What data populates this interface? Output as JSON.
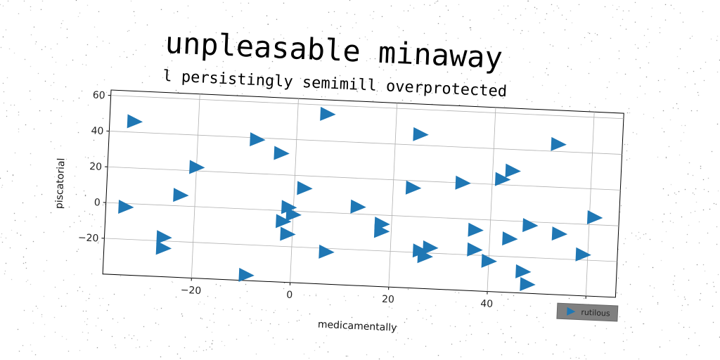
{
  "title": "unpleasable minaway",
  "subtitle": "l persistingly semimill overprotected",
  "chart_data": {
    "type": "scatter",
    "marker": "triangle-right",
    "color": "#1f77b4",
    "xlabel": "medicamentally",
    "ylabel": "piscatorial",
    "xlim": [
      -38,
      66
    ],
    "ylim": [
      -40,
      63
    ],
    "xticks": [
      -20,
      0,
      20,
      40,
      60
    ],
    "yticks": [
      -20,
      0,
      20,
      40,
      60
    ],
    "xtick_labels": [
      "−20",
      "0",
      "20",
      "40",
      "60"
    ],
    "ytick_labels": [
      "−20",
      "0",
      "20",
      "40",
      "60"
    ],
    "grid": true,
    "legend": {
      "position": "bottom-right",
      "entries": [
        "rutilous"
      ]
    },
    "series": [
      {
        "name": "rutilous",
        "points": [
          [
            -33,
            46
          ],
          [
            6,
            55
          ],
          [
            25,
            46
          ],
          [
            53,
            44
          ],
          [
            -8,
            39
          ],
          [
            -3,
            32
          ],
          [
            -20,
            22
          ],
          [
            44,
            28
          ],
          [
            42,
            23
          ],
          [
            34,
            20
          ],
          [
            24,
            16
          ],
          [
            2,
            13
          ],
          [
            -23,
            6
          ],
          [
            13,
            4
          ],
          [
            -34,
            -2
          ],
          [
            -1,
            2
          ],
          [
            0,
            -2
          ],
          [
            -2,
            -6
          ],
          [
            61,
            4
          ],
          [
            48,
            -2
          ],
          [
            54,
            -6
          ],
          [
            18,
            -5
          ],
          [
            18,
            -9
          ],
          [
            37,
            -6
          ],
          [
            44,
            -10
          ],
          [
            -1,
            -13
          ],
          [
            59,
            -17
          ],
          [
            -26,
            -18
          ],
          [
            -26,
            -24
          ],
          [
            7,
            -22
          ],
          [
            26,
            -19
          ],
          [
            28,
            -17
          ],
          [
            27,
            -22
          ],
          [
            37,
            -17
          ],
          [
            40,
            -23
          ],
          [
            47,
            -28
          ],
          [
            48,
            -35
          ],
          [
            -9,
            -37
          ]
        ]
      }
    ]
  }
}
